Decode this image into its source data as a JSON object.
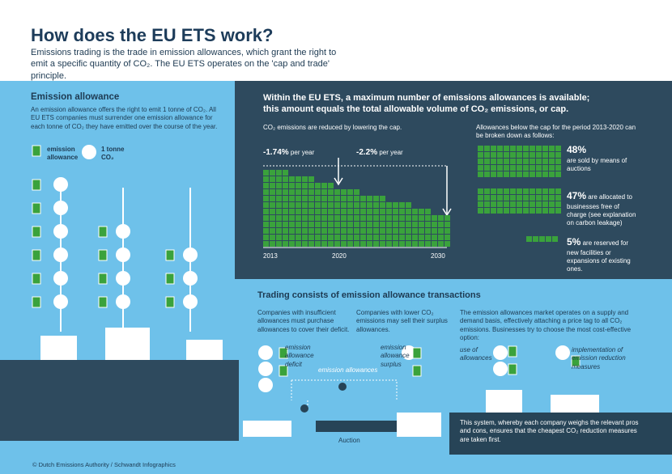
{
  "header": {
    "title": "How does the EU ETS work?",
    "subtitle": "Emissions trading is the trade in emission allowances, which grant the right to emit a specific quantity of CO₂. The EU ETS operates on the 'cap and trade' principle."
  },
  "allowance": {
    "title": "Emission allowance",
    "text": "An emission allowance offers the right to emit 1 tonne of CO₂. All EU ETS companies must surrender one emission allowance for each tonne of CO₂ they have emitted over the course of the year.",
    "legend_allowance": "emission allowance",
    "legend_co2": "1 tonne CO₂"
  },
  "cap": {
    "title": "Within the EU ETS, a maximum number of emissions allowances is available; this amount equals the total allowable volume of CO₂ emissions, or cap.",
    "note": "CO₂ emissions are reduced by lowering the cap.",
    "rates": [
      {
        "value": "-1.74%",
        "unit": "per year"
      },
      {
        "value": "-2.2%",
        "unit": "per year"
      }
    ],
    "years": [
      "2013",
      "2020",
      "2030"
    ],
    "intro": "Allowances below the cap for the period 2013-2020 can be broken down as follows:",
    "items": [
      {
        "percent": "48%",
        "text": "are sold by means of auctions"
      },
      {
        "percent": "47%",
        "text": "are allocated to businesses free of charge (see explanation on carbon leakage)"
      },
      {
        "percent": "5%",
        "text": "are reserved for new facilities or expansions of existing ones."
      }
    ]
  },
  "trading": {
    "title": "Trading consists of emission allowance transactions",
    "col1": "Companies with insufficient allowances must purchase allowances to cover their deficit.",
    "col2": "Companies with lower CO₂ emissions may sell their surplus allowances.",
    "col3": "The emission allowances market operates on a supply and demand basis, effectively attaching a price tag to all CO₂ emissions. Businesses try to choose the most cost-effective option:",
    "deficit": "emission allowance deficit",
    "surplus": "emission allowance surplus",
    "flow": "emission allowances",
    "auction": "Auction",
    "use": "use of allowances",
    "reduction": "implementation of emission reduction measures",
    "footnote": "This system, whereby each company weighs the relevant pros and cons, ensures that the cheapest CO₂ reduction measures are taken first."
  },
  "credit": "© Dutch Emissions Authority / Schwandt Infographics"
}
